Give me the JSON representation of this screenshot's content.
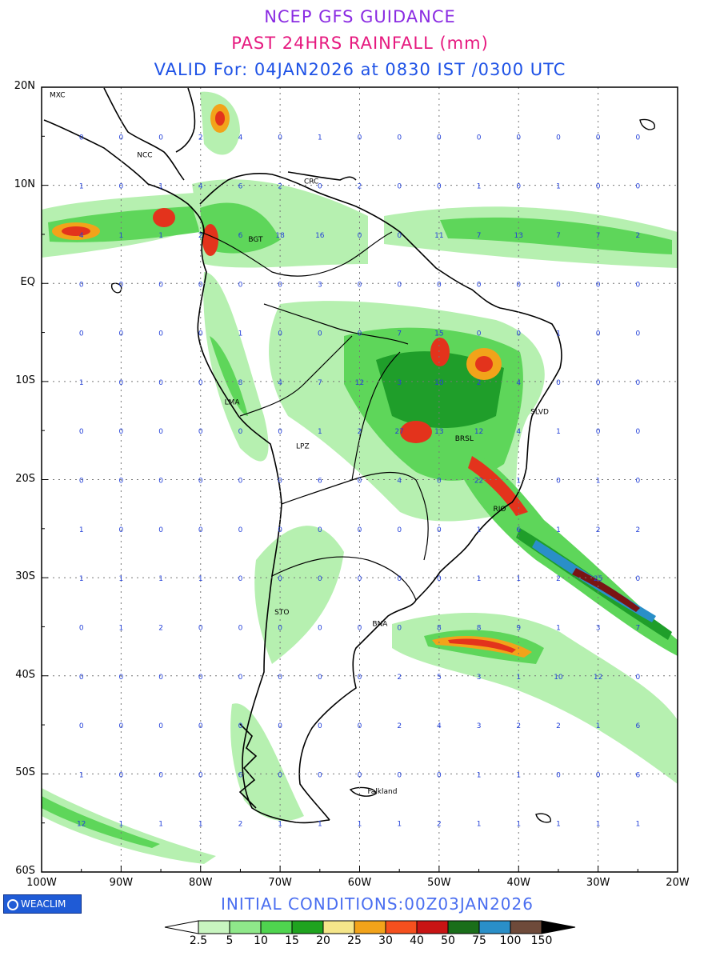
{
  "header": {
    "line1": "NCEP GFS GUIDANCE",
    "line2": "PAST 24HRS RAINFALL (mm)",
    "line3": "VALID For: 04JAN2026 at 0830 IST /0300 UTC"
  },
  "axes": {
    "lat_labels": [
      "20N",
      "10N",
      "EQ",
      "10S",
      "20S",
      "30S",
      "40S",
      "50S",
      "60S"
    ],
    "lat_values": [
      20,
      10,
      0,
      -10,
      -20,
      -30,
      -40,
      -50,
      -60
    ],
    "lon_labels": [
      "100W",
      "90W",
      "80W",
      "70W",
      "60W",
      "50W",
      "40W",
      "30W",
      "20W"
    ],
    "lon_values": [
      -100,
      -90,
      -80,
      -70,
      -60,
      -50,
      -40,
      -30,
      -20
    ]
  },
  "cities": [
    {
      "name": "MXC",
      "lon": -99,
      "lat": 19.3
    },
    {
      "name": "NCC",
      "lon": -88,
      "lat": 13.2
    },
    {
      "name": "CRC",
      "lon": -67,
      "lat": 10.5
    },
    {
      "name": "BGT",
      "lon": -74,
      "lat": 4.6
    },
    {
      "name": "LMA",
      "lon": -77,
      "lat": -12
    },
    {
      "name": "LPZ",
      "lon": -68,
      "lat": -16.5
    },
    {
      "name": "BRSL",
      "lon": -48,
      "lat": -15.7
    },
    {
      "name": "SLVD",
      "lon": -38.5,
      "lat": -13
    },
    {
      "name": "RIO",
      "lon": -43.2,
      "lat": -22.9
    },
    {
      "name": "STO",
      "lon": -70.7,
      "lat": -33.4
    },
    {
      "name": "BNA",
      "lon": -58.4,
      "lat": -34.6
    },
    {
      "name": "Falkland",
      "lon": -59,
      "lat": -51.7
    }
  ],
  "grid_values": [
    [
      -95,
      15,
      "0"
    ],
    [
      -90,
      15,
      "0"
    ],
    [
      -85,
      15,
      "0"
    ],
    [
      -80,
      15,
      "2"
    ],
    [
      -75,
      15,
      "4"
    ],
    [
      -70,
      15,
      "0"
    ],
    [
      -65,
      15,
      "1"
    ],
    [
      -60,
      15,
      "0"
    ],
    [
      -55,
      15,
      "0"
    ],
    [
      -50,
      15,
      "0"
    ],
    [
      -45,
      15,
      "0"
    ],
    [
      -40,
      15,
      "0"
    ],
    [
      -35,
      15,
      "0"
    ],
    [
      -30,
      15,
      "0"
    ],
    [
      -25,
      15,
      "0"
    ],
    [
      -95,
      10,
      "1"
    ],
    [
      -90,
      10,
      "0"
    ],
    [
      -85,
      10,
      "1"
    ],
    [
      -80,
      10,
      "4"
    ],
    [
      -75,
      10,
      "6"
    ],
    [
      -70,
      10,
      "2"
    ],
    [
      -65,
      10,
      "0"
    ],
    [
      -60,
      10,
      "2"
    ],
    [
      -55,
      10,
      "0"
    ],
    [
      -50,
      10,
      "0"
    ],
    [
      -45,
      10,
      "1"
    ],
    [
      -40,
      10,
      "0"
    ],
    [
      -35,
      10,
      "1"
    ],
    [
      -30,
      10,
      "0"
    ],
    [
      -25,
      10,
      "0"
    ],
    [
      -95,
      5,
      "4"
    ],
    [
      -90,
      5,
      "1"
    ],
    [
      -85,
      5,
      "1"
    ],
    [
      -80,
      5,
      "2"
    ],
    [
      -75,
      5,
      "6"
    ],
    [
      -70,
      5,
      "18"
    ],
    [
      -65,
      5,
      "16"
    ],
    [
      -60,
      5,
      "0"
    ],
    [
      -55,
      5,
      "0"
    ],
    [
      -50,
      5,
      "11"
    ],
    [
      -45,
      5,
      "7"
    ],
    [
      -40,
      5,
      "13"
    ],
    [
      -35,
      5,
      "7"
    ],
    [
      -30,
      5,
      "7"
    ],
    [
      -25,
      5,
      "2"
    ],
    [
      -95,
      0,
      "0"
    ],
    [
      -90,
      0,
      "0"
    ],
    [
      -85,
      0,
      "0"
    ],
    [
      -80,
      0,
      "0"
    ],
    [
      -75,
      0,
      "0"
    ],
    [
      -70,
      0,
      "0"
    ],
    [
      -65,
      0,
      "3"
    ],
    [
      -60,
      0,
      "0"
    ],
    [
      -55,
      0,
      "0"
    ],
    [
      -50,
      0,
      "0"
    ],
    [
      -45,
      0,
      "0"
    ],
    [
      -40,
      0,
      "0"
    ],
    [
      -35,
      0,
      "0"
    ],
    [
      -30,
      0,
      "0"
    ],
    [
      -25,
      0,
      "0"
    ],
    [
      -95,
      -5,
      "0"
    ],
    [
      -90,
      -5,
      "0"
    ],
    [
      -85,
      -5,
      "0"
    ],
    [
      -80,
      -5,
      "0"
    ],
    [
      -75,
      -5,
      "1"
    ],
    [
      -70,
      -5,
      "0"
    ],
    [
      -65,
      -5,
      "0"
    ],
    [
      -60,
      -5,
      "0"
    ],
    [
      -55,
      -5,
      "7"
    ],
    [
      -50,
      -5,
      "15"
    ],
    [
      -45,
      -5,
      "0"
    ],
    [
      -40,
      -5,
      "0"
    ],
    [
      -35,
      -5,
      "1"
    ],
    [
      -30,
      -5,
      "0"
    ],
    [
      -25,
      -5,
      "0"
    ],
    [
      -95,
      -10,
      "1"
    ],
    [
      -90,
      -10,
      "0"
    ],
    [
      -85,
      -10,
      "0"
    ],
    [
      -80,
      -10,
      "0"
    ],
    [
      -75,
      -10,
      "8"
    ],
    [
      -70,
      -10,
      "4"
    ],
    [
      -65,
      -10,
      "7"
    ],
    [
      -60,
      -10,
      "12"
    ],
    [
      -55,
      -10,
      "3"
    ],
    [
      -50,
      -10,
      "10"
    ],
    [
      -45,
      -10,
      "2"
    ],
    [
      -40,
      -10,
      "4"
    ],
    [
      -35,
      -10,
      "0"
    ],
    [
      -30,
      -10,
      "0"
    ],
    [
      -25,
      -10,
      "0"
    ],
    [
      -95,
      -15,
      "0"
    ],
    [
      -90,
      -15,
      "0"
    ],
    [
      -85,
      -15,
      "0"
    ],
    [
      -80,
      -15,
      "0"
    ],
    [
      -75,
      -15,
      "0"
    ],
    [
      -70,
      -15,
      "0"
    ],
    [
      -65,
      -15,
      "1"
    ],
    [
      -60,
      -15,
      "2"
    ],
    [
      -55,
      -15,
      "27"
    ],
    [
      -50,
      -15,
      "13"
    ],
    [
      -45,
      -15,
      "12"
    ],
    [
      -40,
      -15,
      "4"
    ],
    [
      -35,
      -15,
      "1"
    ],
    [
      -30,
      -15,
      "0"
    ],
    [
      -25,
      -15,
      "0"
    ],
    [
      -95,
      -20,
      "0"
    ],
    [
      -90,
      -20,
      "0"
    ],
    [
      -85,
      -20,
      "0"
    ],
    [
      -80,
      -20,
      "0"
    ],
    [
      -75,
      -20,
      "0"
    ],
    [
      -70,
      -20,
      "0"
    ],
    [
      -65,
      -20,
      "6"
    ],
    [
      -60,
      -20,
      "0"
    ],
    [
      -55,
      -20,
      "4"
    ],
    [
      -50,
      -20,
      "0"
    ],
    [
      -45,
      -20,
      "22"
    ],
    [
      -40,
      -20,
      "1"
    ],
    [
      -35,
      -20,
      "0"
    ],
    [
      -30,
      -20,
      "1"
    ],
    [
      -25,
      -20,
      "0"
    ],
    [
      -95,
      -25,
      "1"
    ],
    [
      -90,
      -25,
      "0"
    ],
    [
      -85,
      -25,
      "0"
    ],
    [
      -80,
      -25,
      "0"
    ],
    [
      -75,
      -25,
      "0"
    ],
    [
      -70,
      -25,
      "0"
    ],
    [
      -65,
      -25,
      "0"
    ],
    [
      -60,
      -25,
      "0"
    ],
    [
      -55,
      -25,
      "0"
    ],
    [
      -50,
      -25,
      "0"
    ],
    [
      -45,
      -25,
      "1"
    ],
    [
      -40,
      -25,
      "6"
    ],
    [
      -35,
      -25,
      "1"
    ],
    [
      -30,
      -25,
      "2"
    ],
    [
      -25,
      -25,
      "2"
    ],
    [
      -95,
      -30,
      "1"
    ],
    [
      -90,
      -30,
      "1"
    ],
    [
      -85,
      -30,
      "1"
    ],
    [
      -80,
      -30,
      "1"
    ],
    [
      -75,
      -30,
      "0"
    ],
    [
      -70,
      -30,
      "0"
    ],
    [
      -65,
      -30,
      "0"
    ],
    [
      -60,
      -30,
      "0"
    ],
    [
      -55,
      -30,
      "0"
    ],
    [
      -50,
      -30,
      "0"
    ],
    [
      -45,
      -30,
      "1"
    ],
    [
      -40,
      -30,
      "1"
    ],
    [
      -35,
      -30,
      "2"
    ],
    [
      -30,
      -30,
      "25"
    ],
    [
      -25,
      -30,
      "0"
    ],
    [
      -95,
      -35,
      "0"
    ],
    [
      -90,
      -35,
      "1"
    ],
    [
      -85,
      -35,
      "2"
    ],
    [
      -80,
      -35,
      "0"
    ],
    [
      -75,
      -35,
      "0"
    ],
    [
      -70,
      -35,
      "0"
    ],
    [
      -65,
      -35,
      "0"
    ],
    [
      -60,
      -35,
      "0"
    ],
    [
      -55,
      -35,
      "0"
    ],
    [
      -50,
      -35,
      "8"
    ],
    [
      -45,
      -35,
      "8"
    ],
    [
      -40,
      -35,
      "9"
    ],
    [
      -35,
      -35,
      "1"
    ],
    [
      -30,
      -35,
      "3"
    ],
    [
      -25,
      -35,
      "7"
    ],
    [
      -95,
      -40,
      "0"
    ],
    [
      -90,
      -40,
      "0"
    ],
    [
      -85,
      -40,
      "0"
    ],
    [
      -80,
      -40,
      "0"
    ],
    [
      -75,
      -40,
      "0"
    ],
    [
      -70,
      -40,
      "0"
    ],
    [
      -65,
      -40,
      "0"
    ],
    [
      -60,
      -40,
      "0"
    ],
    [
      -55,
      -40,
      "2"
    ],
    [
      -50,
      -40,
      "5"
    ],
    [
      -45,
      -40,
      "3"
    ],
    [
      -40,
      -40,
      "1"
    ],
    [
      -35,
      -40,
      "10"
    ],
    [
      -30,
      -40,
      "12"
    ],
    [
      -25,
      -40,
      "0"
    ],
    [
      -95,
      -45,
      "0"
    ],
    [
      -90,
      -45,
      "0"
    ],
    [
      -85,
      -45,
      "0"
    ],
    [
      -80,
      -45,
      "0"
    ],
    [
      -75,
      -45,
      "0"
    ],
    [
      -70,
      -45,
      "0"
    ],
    [
      -65,
      -45,
      "0"
    ],
    [
      -60,
      -45,
      "0"
    ],
    [
      -55,
      -45,
      "2"
    ],
    [
      -50,
      -45,
      "4"
    ],
    [
      -45,
      -45,
      "3"
    ],
    [
      -40,
      -45,
      "2"
    ],
    [
      -35,
      -45,
      "2"
    ],
    [
      -30,
      -45,
      "1"
    ],
    [
      -25,
      -45,
      "6"
    ],
    [
      -95,
      -50,
      "1"
    ],
    [
      -90,
      -50,
      "0"
    ],
    [
      -85,
      -50,
      "0"
    ],
    [
      -80,
      -50,
      "0"
    ],
    [
      -75,
      -50,
      "6"
    ],
    [
      -70,
      -50,
      "0"
    ],
    [
      -65,
      -50,
      "0"
    ],
    [
      -60,
      -50,
      "0"
    ],
    [
      -55,
      -50,
      "0"
    ],
    [
      -50,
      -50,
      "0"
    ],
    [
      -45,
      -50,
      "1"
    ],
    [
      -40,
      -50,
      "1"
    ],
    [
      -35,
      -50,
      "0"
    ],
    [
      -30,
      -50,
      "0"
    ],
    [
      -25,
      -50,
      "6"
    ],
    [
      -95,
      -55,
      "12"
    ],
    [
      -90,
      -55,
      "1"
    ],
    [
      -85,
      -55,
      "1"
    ],
    [
      -80,
      -55,
      "1"
    ],
    [
      -75,
      -55,
      "2"
    ],
    [
      -70,
      -55,
      "1"
    ],
    [
      -65,
      -55,
      "1"
    ],
    [
      -60,
      -55,
      "1"
    ],
    [
      -55,
      -55,
      "1"
    ],
    [
      -50,
      -55,
      "2"
    ],
    [
      -45,
      -55,
      "1"
    ],
    [
      -40,
      -55,
      "1"
    ],
    [
      -35,
      -55,
      "1"
    ],
    [
      -30,
      -55,
      "1"
    ],
    [
      -25,
      -55,
      "1"
    ]
  ],
  "footer": {
    "logo": "WEACLIM",
    "initial_conditions": "INITIAL  CONDITIONS:00Z03JAN2026"
  },
  "legend": {
    "labels": [
      "2.5",
      "5",
      "10",
      "15",
      "20",
      "25",
      "30",
      "40",
      "50",
      "75",
      "100",
      "150"
    ],
    "colors": [
      "#ffffff",
      "#c8f5c0",
      "#8fe88a",
      "#4fd44f",
      "#1fa31f",
      "#f5e68a",
      "#f2a31a",
      "#f5501e",
      "#c81414",
      "#1a6e1a",
      "#2a8fc8",
      "#6e4a3a",
      "#000000"
    ]
  },
  "rain_colors": {
    "light": "#b6f0b0",
    "moderate": "#5ed65a",
    "heavy": "#1f9e2a",
    "orange": "#f2a31a",
    "red": "#e3331c",
    "dark": "#7a1414",
    "blue": "#2a8fc8"
  }
}
